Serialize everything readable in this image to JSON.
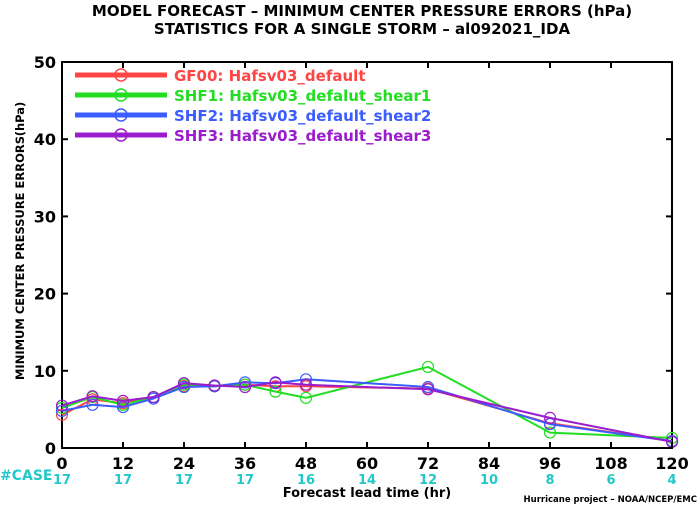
{
  "chart_data": {
    "type": "line",
    "title": "MODEL FORECAST – MINIMUM CENTER PRESSURE ERRORS (hPa)",
    "subtitle": "STATISTICS FOR A SINGLE STORM – al092021_IDA",
    "xlabel": "Forecast lead time (hr)",
    "ylabel": "MINIMUM CENTER PRESSURE ERRORS",
    "ylabel_unit": "(hPa)",
    "xlim": [
      0,
      120
    ],
    "ylim": [
      0,
      50
    ],
    "x_ticks": [
      0,
      12,
      24,
      36,
      48,
      60,
      72,
      84,
      96,
      108,
      120
    ],
    "y_ticks": [
      0,
      10,
      20,
      30,
      40,
      50
    ],
    "grid": false,
    "legend_position": "top-left",
    "case_label": "#CASE",
    "case_color": "#22c8c8",
    "case_counts": [
      {
        "x": 0,
        "n": "17"
      },
      {
        "x": 12,
        "n": "17"
      },
      {
        "x": 24,
        "n": "17"
      },
      {
        "x": 36,
        "n": "17"
      },
      {
        "x": 48,
        "n": "16"
      },
      {
        "x": 60,
        "n": "14"
      },
      {
        "x": 72,
        "n": "12"
      },
      {
        "x": 84,
        "n": "10"
      },
      {
        "x": 96,
        "n": "8"
      },
      {
        "x": 108,
        "n": "6"
      },
      {
        "x": 120,
        "n": "4"
      }
    ],
    "credit": "Hurricane project – NOAA/NCEP/EMC",
    "series": [
      {
        "name": "GF00: Hafsv03_default",
        "color": "#ff4444",
        "x": [
          0,
          6,
          12,
          18,
          24,
          30,
          36,
          42,
          48,
          72,
          96,
          120
        ],
        "y": [
          4.3,
          6.3,
          5.8,
          6.6,
          8.0,
          8.0,
          8.2,
          8.0,
          8.0,
          7.7,
          3.2,
          0.9
        ]
      },
      {
        "name": "SHF1: Hafsv03_defalut_shear1",
        "color": "#22dd22",
        "x": [
          0,
          6,
          12,
          18,
          24,
          30,
          36,
          42,
          48,
          72,
          96,
          120
        ],
        "y": [
          5.2,
          6.6,
          5.6,
          6.6,
          8.2,
          8.0,
          8.2,
          7.3,
          6.5,
          10.5,
          2.0,
          1.3
        ]
      },
      {
        "name": "SHF2: Hafsv03_default_shear2",
        "color": "#3b5cff",
        "x": [
          0,
          6,
          12,
          18,
          24,
          30,
          36,
          42,
          48,
          72,
          96,
          120
        ],
        "y": [
          4.8,
          5.6,
          5.3,
          6.4,
          7.9,
          8.0,
          8.5,
          8.4,
          8.9,
          7.9,
          3.1,
          0.9
        ]
      },
      {
        "name": "SHF3: Hafsv03_default_shear3",
        "color": "#9a1ccc",
        "x": [
          0,
          6,
          12,
          18,
          24,
          30,
          36,
          42,
          48,
          72,
          96,
          120
        ],
        "y": [
          5.5,
          6.7,
          6.1,
          6.6,
          8.4,
          8.1,
          7.9,
          8.5,
          8.2,
          7.6,
          3.9,
          0.8
        ]
      }
    ]
  }
}
